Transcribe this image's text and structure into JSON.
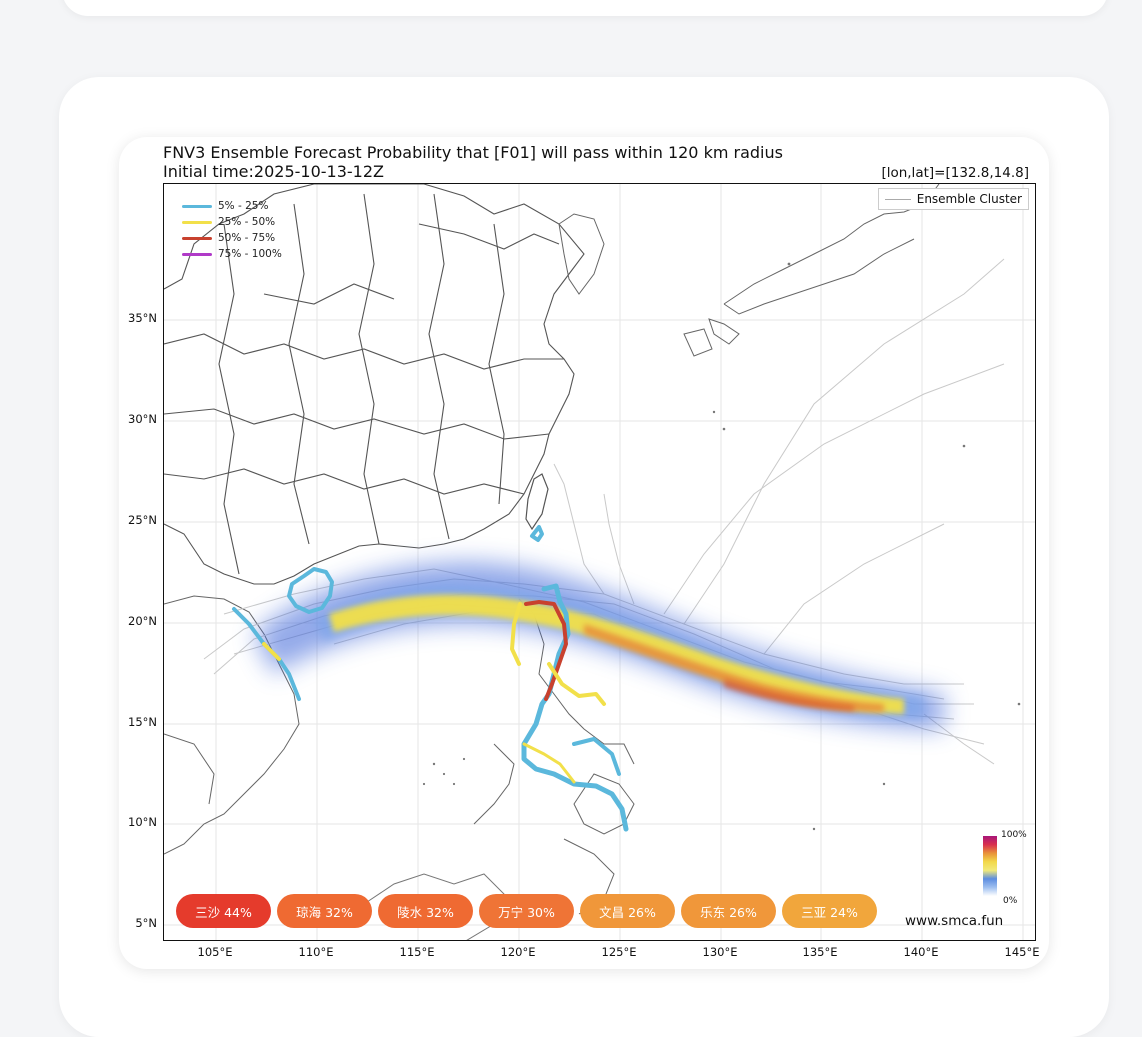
{
  "chart_data": {
    "type": "map",
    "title_line1": "FNV3 Ensemble Forecast Probability that [F01] will pass within 120 km radius",
    "title_line2": "Initial time:2025-10-13-12Z",
    "point_readout": "[lon,lat]=[132.8,14.8]",
    "y_ticks": [
      "35°N",
      "30°N",
      "25°N",
      "20°N",
      "15°N",
      "10°N",
      "5°N"
    ],
    "x_ticks": [
      "105°E",
      "110°E",
      "115°E",
      "120°E",
      "125°E",
      "130°E",
      "135°E",
      "140°E",
      "145°E"
    ],
    "legend": [
      {
        "label": "5% - 25%",
        "color": "#5bb8dc"
      },
      {
        "label": "25% - 50%",
        "color": "#f2e04a"
      },
      {
        "label": "50% - 75%",
        "color": "#c8412e"
      },
      {
        "label": "75% - 100%",
        "color": "#b03ac8"
      }
    ],
    "ensemble_label": "Ensemble Cluster",
    "colorbar": {
      "max_label": "100%",
      "min_label": "0%"
    },
    "watermark": "www.smca.fun",
    "city_probabilities": [
      {
        "label": "三沙 44%",
        "value": 44,
        "color": "#e53b2c"
      },
      {
        "label": "琼海 32%",
        "value": 32,
        "color": "#ef6a32"
      },
      {
        "label": "陵水 32%",
        "value": 32,
        "color": "#ef6a32"
      },
      {
        "label": "万宁 30%",
        "value": 30,
        "color": "#ef7436"
      },
      {
        "label": "文昌 26%",
        "value": 26,
        "color": "#f0973a"
      },
      {
        "label": "乐东 26%",
        "value": 26,
        "color": "#f0973a"
      },
      {
        "label": "三亚 24%",
        "value": 24,
        "color": "#f1a63c"
      }
    ]
  }
}
